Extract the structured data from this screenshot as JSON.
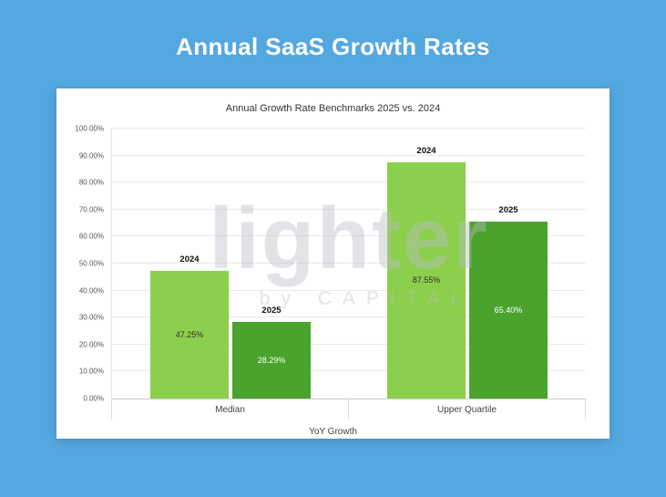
{
  "page": {
    "title": "Annual SaaS Growth Rates"
  },
  "colors": {
    "background": "#54a8e0",
    "bar_2024": "#8ccf4d",
    "bar_2025": "#4aa32c",
    "grid": "#e9e9e9",
    "axis": "#c9c9c9"
  },
  "watermark": {
    "line1": "lighter",
    "line2": "by CAPITAL"
  },
  "chart_data": {
    "type": "bar",
    "title": "Annual Growth Rate Benchmarks 2025 vs. 2024",
    "categories": [
      "Median",
      "Upper Quartile"
    ],
    "series": [
      {
        "name": "2024",
        "values": [
          47.25,
          87.55
        ],
        "labels": [
          "47.25%",
          "87.55%"
        ],
        "color": "#8ccf4d",
        "label_color": "#2f2f2f"
      },
      {
        "name": "2025",
        "values": [
          28.29,
          65.4
        ],
        "labels": [
          "28.29%",
          "65.40%"
        ],
        "color": "#4aa32c",
        "label_color": "#ffffff"
      }
    ],
    "xlabel": "YoY Growth",
    "ylim": [
      0,
      100
    ],
    "y_ticks": [
      "0.00%",
      "10.00%",
      "20.00%",
      "30.00%",
      "40.00%",
      "50.00%",
      "60.00%",
      "70.00%",
      "80.00%",
      "90.00%",
      "100.00%"
    ],
    "grid": true,
    "legend": "none"
  }
}
